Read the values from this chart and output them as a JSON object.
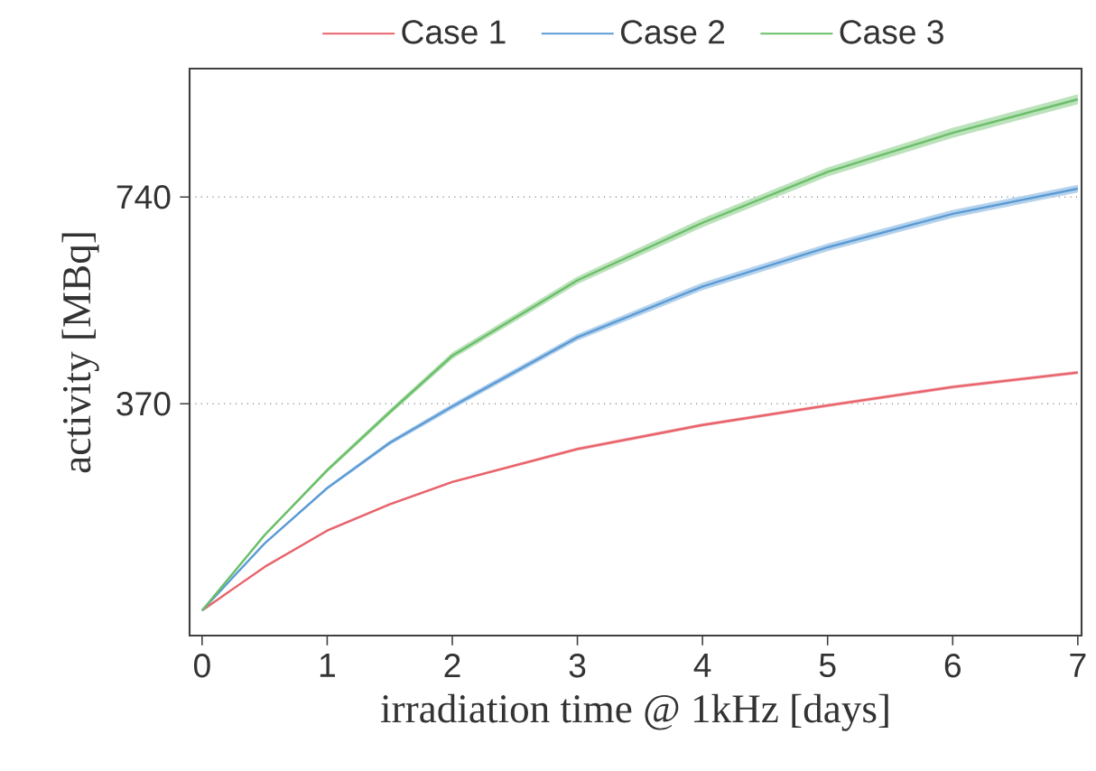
{
  "chart_data": {
    "type": "line",
    "xlabel": "irradiation time @ 1kHz [days]",
    "ylabel": "activity [MBq]",
    "xlim": [
      -0.1,
      7.03
    ],
    "ylim": [
      -45,
      970
    ],
    "xticks": [
      0,
      1,
      2,
      3,
      4,
      5,
      6,
      7
    ],
    "yticks": [
      370,
      740
    ],
    "grid": "y",
    "legend": "top",
    "line_style": "solid",
    "marker": "none",
    "series": [
      {
        "name": "Case 1",
        "color": "#e8646c",
        "x": [
          0,
          0.5,
          1,
          1.5,
          2,
          3,
          4,
          5,
          6,
          7
        ],
        "values": [
          0,
          78,
          143,
          190,
          230,
          289,
          332,
          367,
          400,
          426
        ],
        "lower": [
          0,
          77,
          141,
          188,
          228,
          286,
          329,
          364,
          397,
          423
        ],
        "upper": [
          0,
          79,
          145,
          192,
          232,
          292,
          335,
          370,
          403,
          429
        ]
      },
      {
        "name": "Case 2",
        "color": "#5b9bd5",
        "x": [
          0,
          0.5,
          1,
          1.5,
          2,
          3,
          4,
          5,
          6,
          7
        ],
        "values": [
          0,
          120,
          219,
          300,
          365,
          489,
          580,
          650,
          710,
          755
        ],
        "lower": [
          0,
          118,
          216,
          296,
          360,
          483,
          573,
          643,
          703,
          748
        ],
        "upper": [
          0,
          122,
          222,
          304,
          370,
          495,
          587,
          657,
          717,
          762
        ]
      },
      {
        "name": "Case 3",
        "color": "#6abf69",
        "x": [
          0,
          0.5,
          1,
          1.5,
          2,
          3,
          4,
          5,
          6,
          7
        ],
        "values": [
          0,
          135,
          251,
          355,
          456,
          591,
          694,
          785,
          855,
          915
        ],
        "lower": [
          0,
          133,
          247,
          350,
          450,
          584,
          686,
          777,
          846,
          906
        ],
        "upper": [
          0,
          137,
          255,
          360,
          462,
          598,
          702,
          793,
          864,
          924
        ]
      }
    ]
  }
}
